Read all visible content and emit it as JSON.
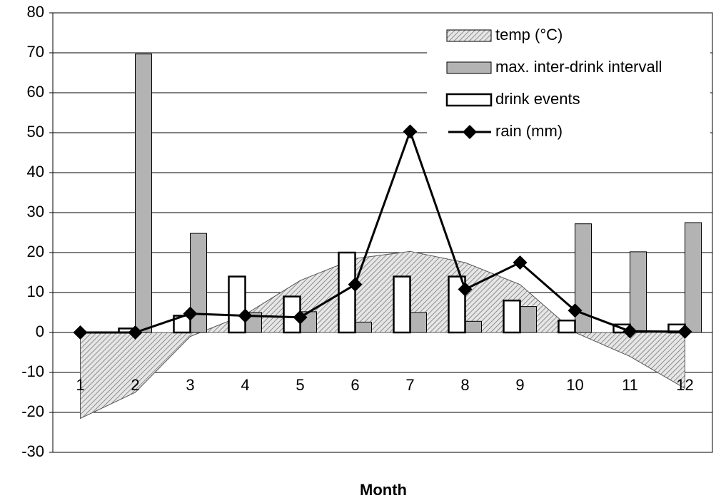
{
  "chart_data": {
    "type": "combo",
    "xlabel": "Month",
    "categories": [
      "1",
      "2",
      "3",
      "4",
      "5",
      "6",
      "7",
      "8",
      "9",
      "10",
      "11",
      "12"
    ],
    "series": [
      {
        "name": "temp (°C)",
        "type": "area",
        "color": "#555555",
        "values": [
          -21.5,
          -15,
          -1,
          4.5,
          13,
          18.5,
          20.3,
          17.5,
          12,
          0,
          -6,
          -14
        ]
      },
      {
        "name": "max. inter-drink intervall",
        "type": "bar",
        "color": "#b3b3b3",
        "values": [
          0,
          69.7,
          24.8,
          5,
          5.2,
          2.6,
          5,
          2.8,
          6.5,
          27.2,
          20.2,
          27.5
        ]
      },
      {
        "name": "drink events",
        "type": "bar",
        "color": "#ffffff",
        "values": [
          0,
          1,
          4.2,
          14,
          9,
          20,
          14,
          14,
          8,
          3,
          2,
          2
        ]
      },
      {
        "name": "rain (mm)",
        "type": "line",
        "color": "#000000",
        "values": [
          0,
          0,
          4.7,
          4.2,
          3.8,
          12,
          50.3,
          10.8,
          17.5,
          5.5,
          0.3,
          0.2
        ]
      }
    ],
    "ylim": [
      -30,
      80
    ],
    "yticks": [
      -30,
      -20,
      -10,
      0,
      10,
      20,
      30,
      40,
      50,
      60,
      70,
      80
    ],
    "grid": true,
    "legend": "top-right"
  }
}
